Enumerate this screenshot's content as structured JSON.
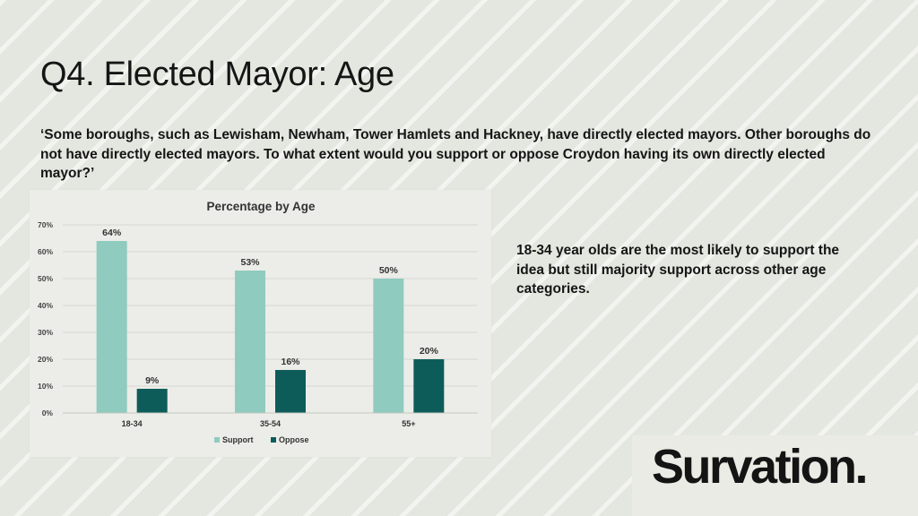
{
  "slide": {
    "title": "Q4. Elected Mayor: Age",
    "question": "‘Some boroughs, such as Lewisham, Newham, Tower Hamlets and Hackney, have directly elected mayors. Other boroughs do not have directly elected mayors. To what extent would you support or oppose Croydon having its own directly elected mayor?’",
    "insight": "18-34 year olds are the most likely to support the idea but still majority support across other age categories.",
    "logo_text": "Survation."
  },
  "chart_data": {
    "type": "bar",
    "title": "Percentage by Age",
    "categories": [
      "18-34",
      "35-54",
      "55+"
    ],
    "series": [
      {
        "name": "Support",
        "values": [
          64,
          53,
          50
        ],
        "labels": [
          "64%",
          "53%",
          "50%"
        ],
        "color": "#8fcbbf"
      },
      {
        "name": "Oppose",
        "values": [
          9,
          16,
          20
        ],
        "labels": [
          "9%",
          "16%",
          "20%"
        ],
        "color": "#0d5c5a"
      }
    ],
    "ylim": [
      0,
      70
    ],
    "yticks": [
      0,
      10,
      20,
      30,
      40,
      50,
      60,
      70
    ],
    "ytick_labels": [
      "0%",
      "10%",
      "20%",
      "30%",
      "40%",
      "50%",
      "60%",
      "70%"
    ],
    "grid": true,
    "legend_position": "bottom"
  }
}
